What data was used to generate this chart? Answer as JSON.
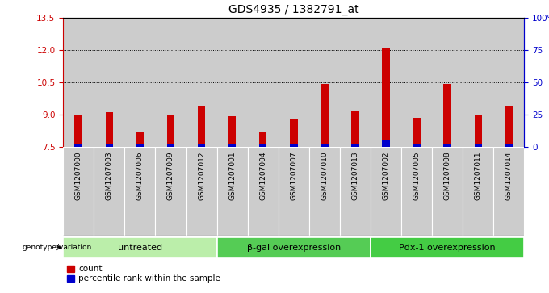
{
  "title": "GDS4935 / 1382791_at",
  "samples": [
    "GSM1207000",
    "GSM1207003",
    "GSM1207006",
    "GSM1207009",
    "GSM1207012",
    "GSM1207001",
    "GSM1207004",
    "GSM1207007",
    "GSM1207010",
    "GSM1207013",
    "GSM1207002",
    "GSM1207005",
    "GSM1207008",
    "GSM1207011",
    "GSM1207014"
  ],
  "red_values": [
    9.0,
    9.1,
    8.2,
    9.0,
    9.4,
    8.9,
    8.2,
    8.75,
    10.4,
    9.15,
    12.05,
    8.85,
    10.4,
    9.0,
    9.4
  ],
  "blue_values_pct": [
    2,
    2,
    2,
    2,
    2,
    2,
    2,
    2,
    2,
    2,
    5,
    2,
    2,
    2,
    2
  ],
  "groups": [
    {
      "label": "untreated",
      "start": 0,
      "end": 4,
      "color": "#bbeeaa"
    },
    {
      "label": "β-gal overexpression",
      "start": 5,
      "end": 9,
      "color": "#55cc55"
    },
    {
      "label": "Pdx-1 overexpression",
      "start": 10,
      "end": 14,
      "color": "#44cc44"
    }
  ],
  "ylim_left": [
    7.5,
    13.5
  ],
  "yticks_left": [
    7.5,
    9.0,
    10.5,
    12.0,
    13.5
  ],
  "yticks_right_vals": [
    0,
    25,
    50,
    75,
    100
  ],
  "bar_bottom": 7.5,
  "bar_width": 0.25,
  "col_bg": "#cccccc",
  "plot_bg": "#ffffff",
  "red_color": "#cc0000",
  "blue_color": "#0000cc",
  "legend_label_red": "count",
  "legend_label_blue": "percentile rank within the sample",
  "genotype_label": "genotype/variation",
  "title_fontsize": 10,
  "tick_label_fontsize": 6.5,
  "ytick_fontsize": 7.5,
  "group_fontsize": 8,
  "legend_fontsize": 7.5
}
